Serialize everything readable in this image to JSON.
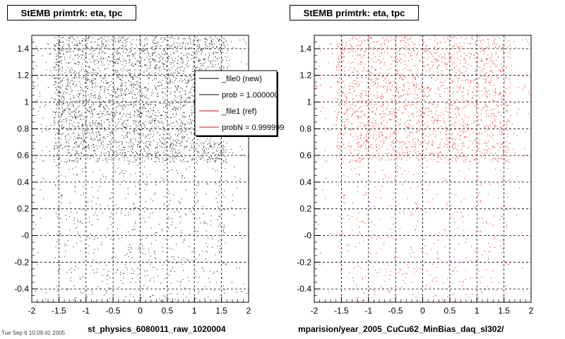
{
  "chart_data": [
    {
      "type": "scatter",
      "title": "StEMB primtrk: eta, tpc",
      "xlabel": "st_physics_6080011_raw_1020004",
      "ylabel": "",
      "xlim": [
        -2,
        2
      ],
      "ylim": [
        -0.5,
        1.5
      ],
      "xticks": [
        "-2",
        "-1.5",
        "-1",
        "-0.5",
        "0",
        "0.5",
        "1",
        "1.5",
        "2"
      ],
      "yticks": [
        "-0.4",
        "-0.2",
        "-0",
        "0.2",
        "0.4",
        "0.6",
        "0.8",
        "1",
        "1.2",
        "1.4"
      ],
      "grid": true,
      "color": "#000000",
      "series": [
        {
          "name": "_file0 (new)",
          "x_range": [
            -2.0,
            2.0
          ],
          "y_range": [
            -0.5,
            1.5
          ],
          "dense_y_range": [
            0.55,
            1.5
          ],
          "dense_x_range": [
            -1.6,
            1.6
          ]
        }
      ],
      "legend": {
        "placement": "top-right",
        "entries": [
          {
            "label": "_file0 (new)",
            "color": "#000000"
          },
          {
            "label": "prob = 1.000000",
            "color": "#000000"
          },
          {
            "label": "_file1 (ref)",
            "color": "#ff0000"
          },
          {
            "label": "probN = 0.999999",
            "color": "#ff0000"
          }
        ]
      }
    },
    {
      "type": "scatter",
      "title": "StEMB primtrk: eta, tpc",
      "xlabel": "mparision/year_2005_CuCu62_MinBias_daq_sl302/",
      "ylabel": "",
      "xlim": [
        -2,
        2
      ],
      "ylim": [
        -0.5,
        1.5
      ],
      "xticks": [
        "-2",
        "-1.5",
        "-1",
        "-0.5",
        "0",
        "0.5",
        "1",
        "1.5",
        "2"
      ],
      "yticks": [
        "-0.4",
        "-0.2",
        "-0",
        "0.2",
        "0.4",
        "0.6",
        "0.8",
        "1",
        "1.2",
        "1.4"
      ],
      "grid": true,
      "color": "#ff0000",
      "series": [
        {
          "name": "_file1 (ref)",
          "x_range": [
            -2.0,
            2.0
          ],
          "y_range": [
            -0.5,
            1.5
          ],
          "dense_y_range": [
            0.55,
            1.5
          ],
          "dense_x_range": [
            -1.6,
            1.6
          ]
        }
      ]
    }
  ],
  "footer_text": "Tue Sep 6 10:09:41 2005"
}
